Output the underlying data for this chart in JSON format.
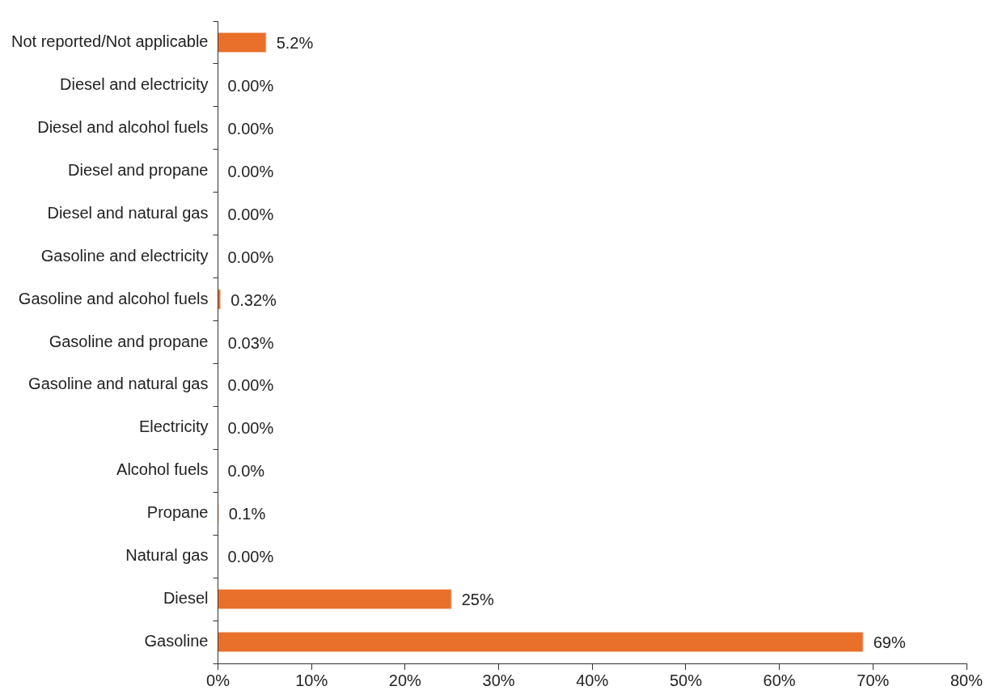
{
  "chart_data": {
    "type": "bar",
    "orientation": "horizontal",
    "categories": [
      "Not reported/Not applicable",
      "Diesel and electricity",
      "Diesel and alcohol fuels",
      "Diesel and propane",
      "Diesel and natural gas",
      "Gasoline and electricity",
      "Gasoline and alcohol fuels",
      "Gasoline and propane",
      "Gasoline and natural gas",
      "Electricity",
      "Alcohol fuels",
      "Propane",
      "Natural gas",
      "Diesel",
      "Gasoline"
    ],
    "values": [
      5.2,
      0,
      0,
      0,
      0,
      0,
      0.32,
      0.03,
      0,
      0,
      0,
      0.1,
      0,
      25,
      69
    ],
    "value_labels": [
      "5.2%",
      "0.00%",
      "0.00%",
      "0.00%",
      "0.00%",
      "0.00%",
      "0.32%",
      "0.03%",
      "0.00%",
      "0.00%",
      "0.0%",
      "0.1%",
      "0.00%",
      "25%",
      "69%"
    ],
    "color": "#e8702a",
    "xlim": [
      0,
      80
    ],
    "xticks": [
      {
        "value": 0,
        "label": "0%"
      },
      {
        "value": 10,
        "label": "10%"
      },
      {
        "value": 20,
        "label": "20%"
      },
      {
        "value": 30,
        "label": "30%"
      },
      {
        "value": 40,
        "label": "40%"
      },
      {
        "value": 50,
        "label": "50%"
      },
      {
        "value": 60,
        "label": "60%"
      },
      {
        "value": 70,
        "label": "70%"
      },
      {
        "value": 80,
        "label": "80%"
      }
    ],
    "grid": false,
    "legend": false
  }
}
